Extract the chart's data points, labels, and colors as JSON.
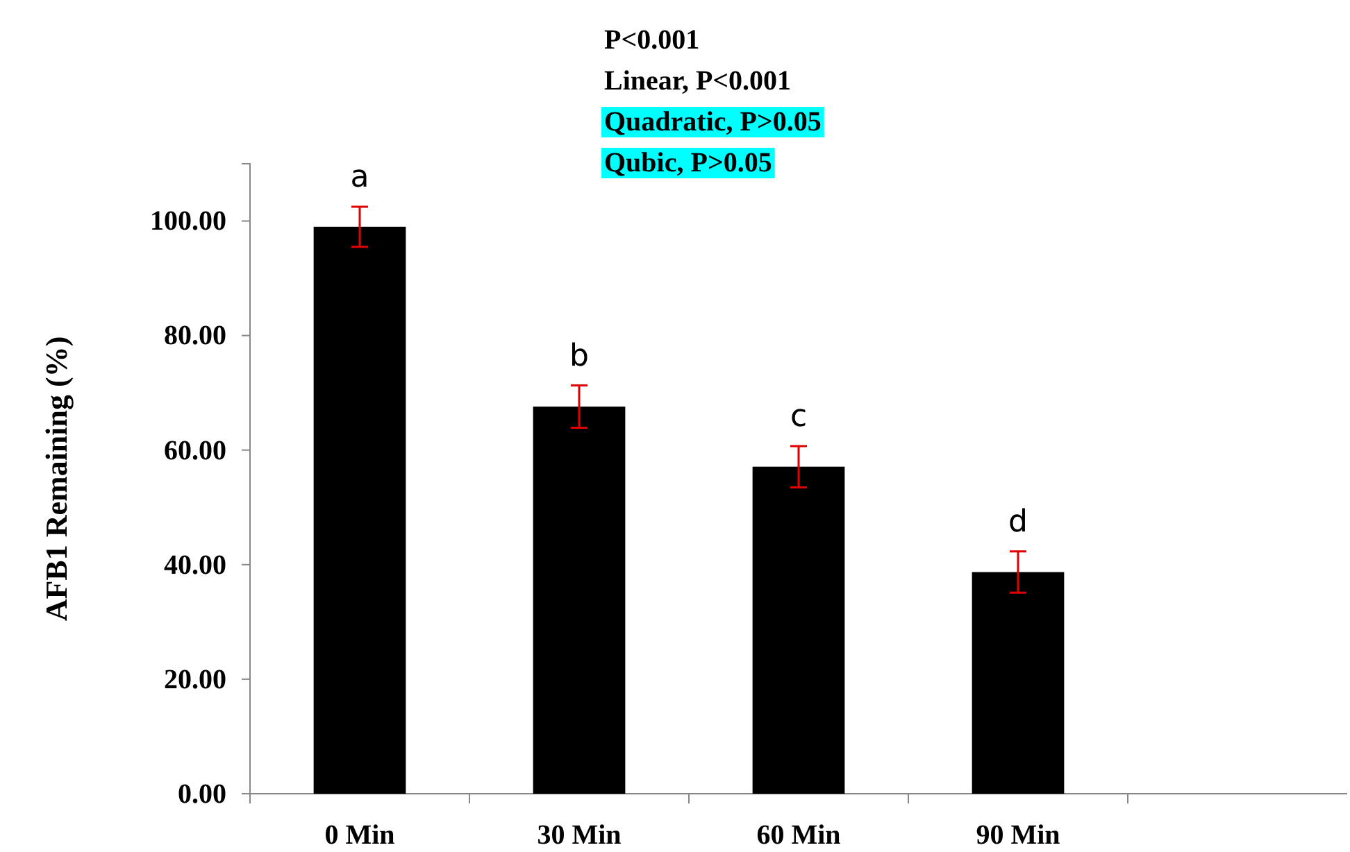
{
  "chart_data": {
    "type": "bar",
    "ylabel": "AFB1 Remaining (%)",
    "categories": [
      "0 Min",
      "30 Min",
      "60 Min",
      "90 Min",
      null
    ],
    "values": [
      99.0,
      67.6,
      57.1,
      38.7,
      null
    ],
    "errors": [
      3.5,
      3.7,
      3.6,
      3.6,
      null
    ],
    "color": "#000000",
    "ylim": [
      0,
      110
    ],
    "yticks": [
      {
        "value": 0,
        "label": "0.00"
      },
      {
        "value": 20,
        "label": "20.00"
      },
      {
        "value": 40,
        "label": "40.00"
      },
      {
        "value": 60,
        "label": "60.00"
      },
      {
        "value": 80,
        "label": "80.00"
      },
      {
        "value": 100,
        "label": "100.00"
      }
    ],
    "grid": false,
    "annotations": [
      "P<0.001",
      "Linear, P<0.001",
      "Quadratic, P>0.05",
      "Qubic, P>0.05",
      {
        "text": "a",
        "x": "0 Min",
        "y": 99.0
      },
      {
        "text": "b",
        "x": "30 Min",
        "y": 67.6
      },
      {
        "text": "c",
        "x": "60 Min",
        "y": 57.1
      },
      {
        "text": "d",
        "x": "90 Min",
        "y": 38.7
      }
    ]
  }
}
